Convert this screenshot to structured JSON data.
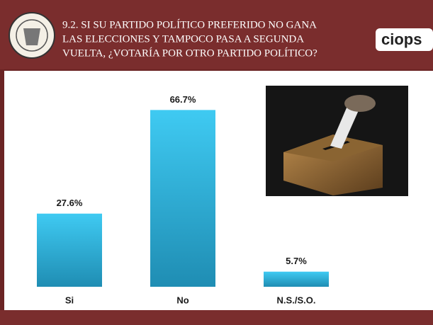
{
  "header": {
    "title_lines": [
      "9.2. SI SU PARTIDO POLÍTICO  PREFERIDO NO GANA",
      "LAS ELECCIONES Y TAMPOCO PASA A SEGUNDA",
      "VUELTA, ¿VOTARÍA POR OTRO  PARTIDO POLÍTICO?"
    ],
    "logo": "ciops"
  },
  "chart_data": {
    "type": "bar",
    "categories": [
      "Si",
      "No",
      "N.S./S.O."
    ],
    "values": [
      27.6,
      66.7,
      5.7
    ],
    "value_labels": [
      "27.6%",
      "66.7%",
      "5.7%"
    ],
    "color": "#35bfe8",
    "ylim": [
      0,
      70
    ]
  }
}
